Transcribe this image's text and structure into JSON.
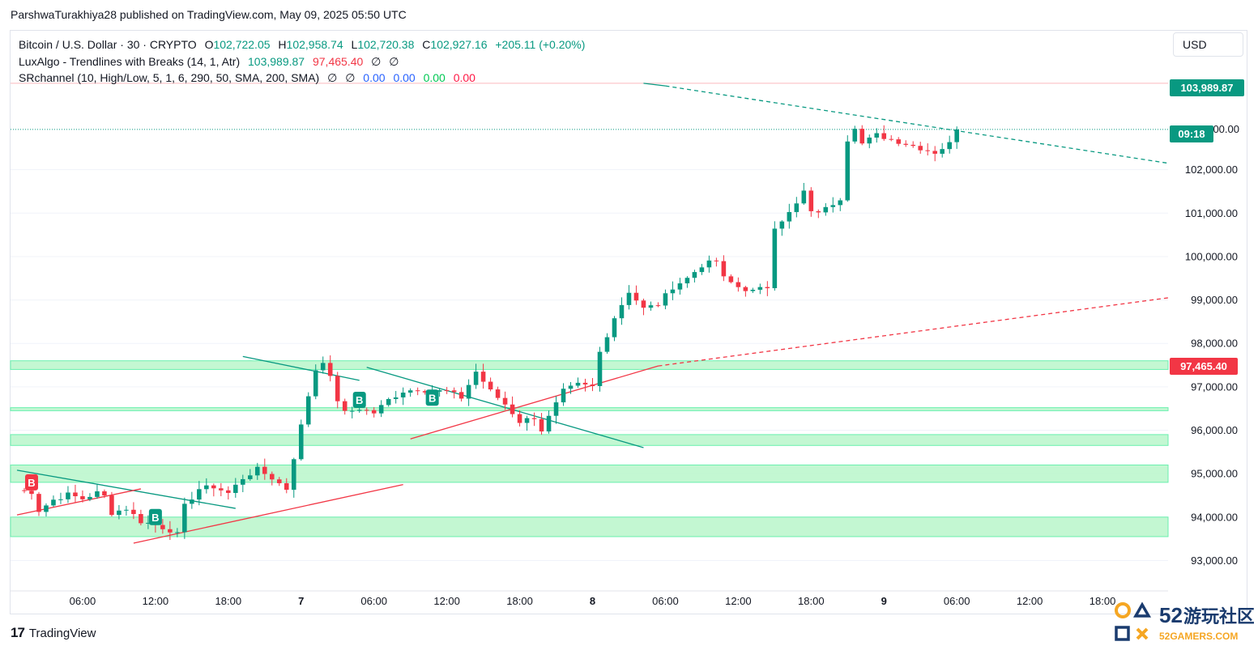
{
  "byline": "ParshwaTurakhiya28 published on TradingView.com, May 09, 2025 05:50 UTC",
  "legend": {
    "symbol": "Bitcoin / U.S. Dollar · 30 · CRYPTO",
    "open_label": "O",
    "open": "102,722.05",
    "high_label": "H",
    "high": "102,958.74",
    "low_label": "L",
    "low": "102,720.38",
    "close_label": "C",
    "close": "102,927.16",
    "change": "+205.11 (+0.20%)",
    "indicator1": "LuxAlgo - Trendlines with Breaks (14, 1, Atr)",
    "indicator1_v1": "103,989.87",
    "indicator1_v2": "97,465.40",
    "indicator1_v3": "∅",
    "indicator1_v4": "∅",
    "indicator2": "SRchannel (10, High/Low, 5, 1, 6, 290, 50, SMA, 200, SMA)",
    "indicator2_v1": "∅",
    "indicator2_v2": "∅",
    "indicator2_v3": "0.00",
    "indicator2_v4": "0.00",
    "indicator2_v5": "0.00",
    "indicator2_v6": "0.00"
  },
  "currency": "USD",
  "price_badges": {
    "upper_trendline": "103,989.87",
    "countdown": "09:18",
    "lower_trendline": "97,465.40"
  },
  "footer_brand": "TradingView",
  "watermark": {
    "number": "52",
    "cn": "游玩社区",
    "site": "52GAMERS.COM"
  },
  "colors": {
    "up": "#089981",
    "down": "#f23645",
    "zone": "#b9f6ca",
    "zone_border": "#69f0ae",
    "bull_line": "#089981",
    "bear_line": "#f23645"
  },
  "chart_data": {
    "type": "candlestick",
    "title": "Bitcoin / U.S. Dollar · 30 · CRYPTO",
    "ylim": [
      92300,
      105200
    ],
    "y_ticks": [
      93000,
      94000,
      95000,
      96000,
      97000,
      98000,
      99000,
      100000,
      101000,
      102000
    ],
    "y_tick_labels": [
      "93,000.00",
      "94,000.00",
      "95,000.00",
      "96,000.00",
      "97,000.00",
      "98,000.00",
      "99,000.00",
      "100,000.00",
      "101,000.00",
      "102,000.00"
    ],
    "x_range_bars": [
      0,
      158
    ],
    "x_ticks": [
      {
        "bar": 9,
        "label": "06:00",
        "bold": false
      },
      {
        "bar": 19,
        "label": "12:00",
        "bold": false
      },
      {
        "bar": 29,
        "label": "18:00",
        "bold": false
      },
      {
        "bar": 39,
        "label": "7",
        "bold": true
      },
      {
        "bar": 49,
        "label": "06:00",
        "bold": false
      },
      {
        "bar": 59,
        "label": "12:00",
        "bold": false
      },
      {
        "bar": 69,
        "label": "18:00",
        "bold": false
      },
      {
        "bar": 79,
        "label": "8",
        "bold": true
      },
      {
        "bar": 89,
        "label": "06:00",
        "bold": false
      },
      {
        "bar": 99,
        "label": "12:00",
        "bold": false
      },
      {
        "bar": 109,
        "label": "18:00",
        "bold": false
      },
      {
        "bar": 119,
        "label": "9",
        "bold": true
      },
      {
        "bar": 129,
        "label": "06:00",
        "bold": false
      },
      {
        "bar": 139,
        "label": "12:00",
        "bold": false
      },
      {
        "bar": 149,
        "label": "18:00",
        "bold": false
      }
    ],
    "ohlc_keypoints": [
      [
        0,
        94620
      ],
      [
        2,
        94580
      ],
      [
        3,
        94150
      ],
      [
        5,
        94400
      ],
      [
        7,
        94520
      ],
      [
        9,
        94420
      ],
      [
        11,
        94560
      ],
      [
        12,
        94480
      ],
      [
        13,
        94100
      ],
      [
        15,
        94200
      ],
      [
        17,
        93900
      ],
      [
        19,
        93820
      ],
      [
        21,
        93700
      ],
      [
        22,
        93600
      ],
      [
        23,
        94250
      ],
      [
        25,
        94650
      ],
      [
        27,
        94700
      ],
      [
        29,
        94550
      ],
      [
        31,
        94900
      ],
      [
        33,
        95100
      ],
      [
        35,
        94900
      ],
      [
        37,
        94650
      ],
      [
        39,
        96100
      ],
      [
        40,
        96800
      ],
      [
        41,
        97400
      ],
      [
        42,
        97600
      ],
      [
        43,
        97200
      ],
      [
        44,
        96700
      ],
      [
        45,
        96400
      ],
      [
        47,
        96500
      ],
      [
        49,
        96400
      ],
      [
        51,
        96700
      ],
      [
        53,
        96900
      ],
      [
        55,
        96950
      ],
      [
        57,
        96900
      ],
      [
        59,
        96900
      ],
      [
        61,
        96750
      ],
      [
        63,
        97350
      ],
      [
        65,
        96900
      ],
      [
        67,
        96600
      ],
      [
        69,
        96200
      ],
      [
        71,
        96300
      ],
      [
        72,
        96000
      ],
      [
        73,
        96300
      ],
      [
        74,
        96600
      ],
      [
        75,
        96900
      ],
      [
        77,
        97050
      ],
      [
        79,
        97000
      ],
      [
        80,
        97800
      ],
      [
        82,
        98600
      ],
      [
        84,
        99200
      ],
      [
        86,
        98800
      ],
      [
        88,
        98900
      ],
      [
        90,
        99300
      ],
      [
        92,
        99500
      ],
      [
        94,
        99800
      ],
      [
        96,
        99900
      ],
      [
        97,
        99500
      ],
      [
        99,
        99300
      ],
      [
        101,
        99200
      ],
      [
        103,
        99300
      ],
      [
        104,
        100700
      ],
      [
        106,
        101000
      ],
      [
        107,
        101200
      ],
      [
        108,
        101500
      ],
      [
        109,
        101000
      ],
      [
        111,
        101100
      ],
      [
        113,
        101350
      ],
      [
        114,
        102700
      ],
      [
        115,
        103000
      ],
      [
        116,
        102600
      ],
      [
        118,
        102800
      ],
      [
        120,
        102700
      ],
      [
        122,
        102600
      ],
      [
        124,
        102500
      ],
      [
        126,
        102400
      ],
      [
        128,
        102600
      ],
      [
        129,
        102927
      ]
    ],
    "sr_zones": [
      {
        "from": 97400,
        "to": 97600
      },
      {
        "from": 96450,
        "to": 96520
      },
      {
        "from": 95650,
        "to": 95900
      },
      {
        "from": 94800,
        "to": 95200
      },
      {
        "from": 93550,
        "to": 94000
      }
    ],
    "trendlines": [
      {
        "color": "bull",
        "dash": false,
        "from": {
          "bar": 0,
          "price": 95080
        },
        "to": {
          "bar": 30,
          "price": 94200
        }
      },
      {
        "color": "bear",
        "dash": false,
        "from": {
          "bar": 0,
          "price": 94050
        },
        "to": {
          "bar": 17,
          "price": 94650
        }
      },
      {
        "color": "bear",
        "dash": false,
        "from": {
          "bar": 16,
          "price": 93400
        },
        "to": {
          "bar": 53,
          "price": 94750
        }
      },
      {
        "color": "bull",
        "dash": false,
        "from": {
          "bar": 31,
          "price": 97700
        },
        "to": {
          "bar": 47,
          "price": 97150
        }
      },
      {
        "color": "bull",
        "dash": false,
        "from": {
          "bar": 48,
          "price": 97450
        },
        "to": {
          "bar": 86,
          "price": 95600
        }
      },
      {
        "color": "bear",
        "dash": false,
        "from": {
          "bar": 54,
          "price": 95800
        },
        "to": {
          "bar": 88,
          "price": 97480
        }
      },
      {
        "color": "bear",
        "dash": true,
        "from": {
          "bar": 88,
          "price": 97480
        },
        "to": {
          "bar": 158,
          "price": 99050
        }
      },
      {
        "color": "bull",
        "dash": false,
        "from": {
          "bar": 86,
          "price": 103990
        },
        "to": {
          "bar": 89,
          "price": 103930
        }
      },
      {
        "color": "bull",
        "dash": true,
        "from": {
          "bar": 89,
          "price": 103930
        },
        "to": {
          "bar": 158,
          "price": 102150
        }
      }
    ],
    "horizontal_lines": [
      {
        "price": 103990,
        "color": "#f23645",
        "style": "solid"
      },
      {
        "price": 102927,
        "color": "#089981",
        "style": "dotted"
      }
    ],
    "break_labels": [
      {
        "bar": 2,
        "price": 94800,
        "text": "B",
        "type": "bear"
      },
      {
        "bar": 19,
        "price": 94000,
        "text": "B",
        "type": "bull"
      },
      {
        "bar": 47,
        "price": 96700,
        "text": "B",
        "type": "bull"
      },
      {
        "bar": 57,
        "price": 96750,
        "text": "B",
        "type": "bull"
      }
    ]
  }
}
